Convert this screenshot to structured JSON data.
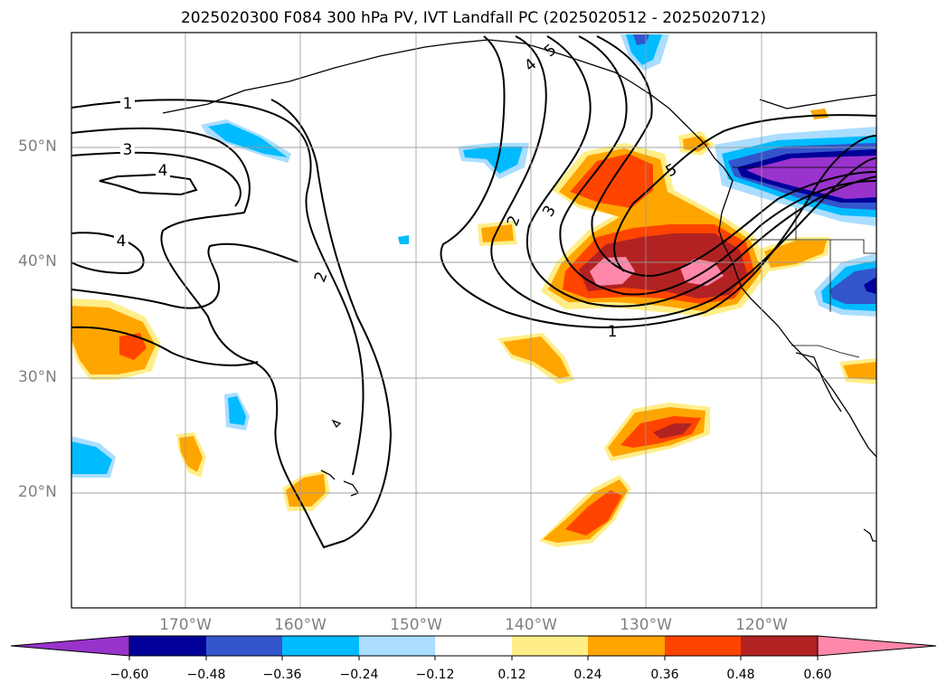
{
  "title": "2025020300 F084 300 hPa PV, IVT Landfall PC (2025020512 - 2025020712)",
  "map": {
    "lat_labels": [
      "50°N",
      "40°N",
      "30°N",
      "20°N"
    ],
    "lon_labels": [
      "170°W",
      "160°W",
      "150°W",
      "140°W",
      "130°W",
      "120°W"
    ],
    "contour_labels": [
      "1",
      "3",
      "4",
      "4",
      "2",
      "2",
      "3",
      "4",
      "5",
      "5",
      "1"
    ]
  },
  "colorbar": {
    "levels": [
      "−0.60",
      "−0.48",
      "−0.36",
      "−0.24",
      "−0.12",
      "0.12",
      "0.24",
      "0.36",
      "0.48",
      "0.60"
    ],
    "colors": [
      "#9933cc",
      "#000099",
      "#3355cc",
      "#00bbff",
      "#aaddff",
      "#ffffff",
      "#ffee88",
      "#ffa500",
      "#ff4400",
      "#b22222",
      "#ff88aa"
    ]
  }
}
